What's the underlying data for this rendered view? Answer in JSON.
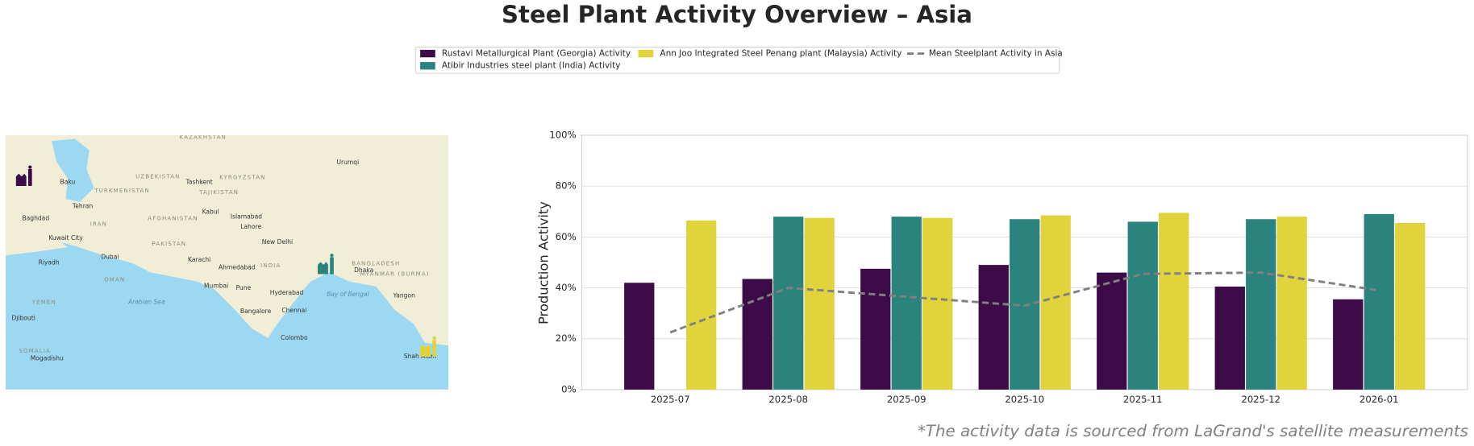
{
  "chart_data": {
    "type": "bar",
    "title": "Steel Plant Activity Overview – Asia",
    "ylabel": "Production Activity",
    "footnote": "*The activity data is sourced from LaGrand's satellite measurements",
    "categories": [
      "2025-07",
      "2025-08",
      "2025-09",
      "2025-10",
      "2025-11",
      "2025-12",
      "2026-01"
    ],
    "series": [
      {
        "name": "Rustavi Metallurgical Plant (Georgia) Activity",
        "color": "#3d0c48",
        "values": [
          42,
          43.5,
          47.5,
          49,
          46,
          40.5,
          35.5
        ]
      },
      {
        "name": "Atibir Industries steel plant (India) Activity",
        "color": "#2b837e",
        "values": [
          null,
          68,
          68,
          67,
          66,
          67,
          69
        ]
      },
      {
        "name": "Ann Joo Integrated Steel Penang plant (Malaysia) Activity",
        "color": "#e1d33c",
        "values": [
          66.5,
          67.5,
          67.5,
          68.5,
          69.5,
          68,
          65.5
        ]
      },
      {
        "name": "Mean Steelplant Activity in Asia",
        "color": "#808080",
        "type": "line",
        "dashed": true,
        "values": [
          22.5,
          40,
          36.5,
          33,
          45.5,
          46,
          39
        ]
      }
    ],
    "ylim": [
      0,
      100
    ],
    "yticks": [
      {
        "value": 0,
        "label": "0%"
      },
      {
        "value": 20,
        "label": "20%"
      },
      {
        "value": 40,
        "label": "40%"
      },
      {
        "value": 60,
        "label": "60%"
      },
      {
        "value": 80,
        "label": "80%"
      },
      {
        "value": 100,
        "label": "100%"
      }
    ],
    "grid": true,
    "legend": "top",
    "map_labels": [
      "KAZAKHSTAN",
      "Urumqi",
      "UZBEKISTAN",
      "KYRGYZSTAN",
      "Tashkent",
      "Baku",
      "TURKMENISTAN",
      "TAJIKISTAN",
      "Tehran",
      "AFGHANISTAN",
      "Kabul",
      "Islamabad",
      "Baghdad",
      "IRAN",
      "Lahore",
      "Kuwait City",
      "New Delhi",
      "PAKISTAN",
      "Karachi",
      "Dubai",
      "Riyadh",
      "Ahmedabad",
      "INDIA",
      "BANGLADESH",
      "Dhaka",
      "MYANMAR (BURMA)",
      "OMAN",
      "Mumbai",
      "Pune",
      "Arabian Sea",
      "Bay of Bengal",
      "Yangon",
      "YEMEN",
      "Hyderabad",
      "Bangalore",
      "Chennai",
      "Djibouti",
      "Colombo",
      "SOMALIA",
      "Mogadishu",
      "Shah Alam"
    ]
  }
}
